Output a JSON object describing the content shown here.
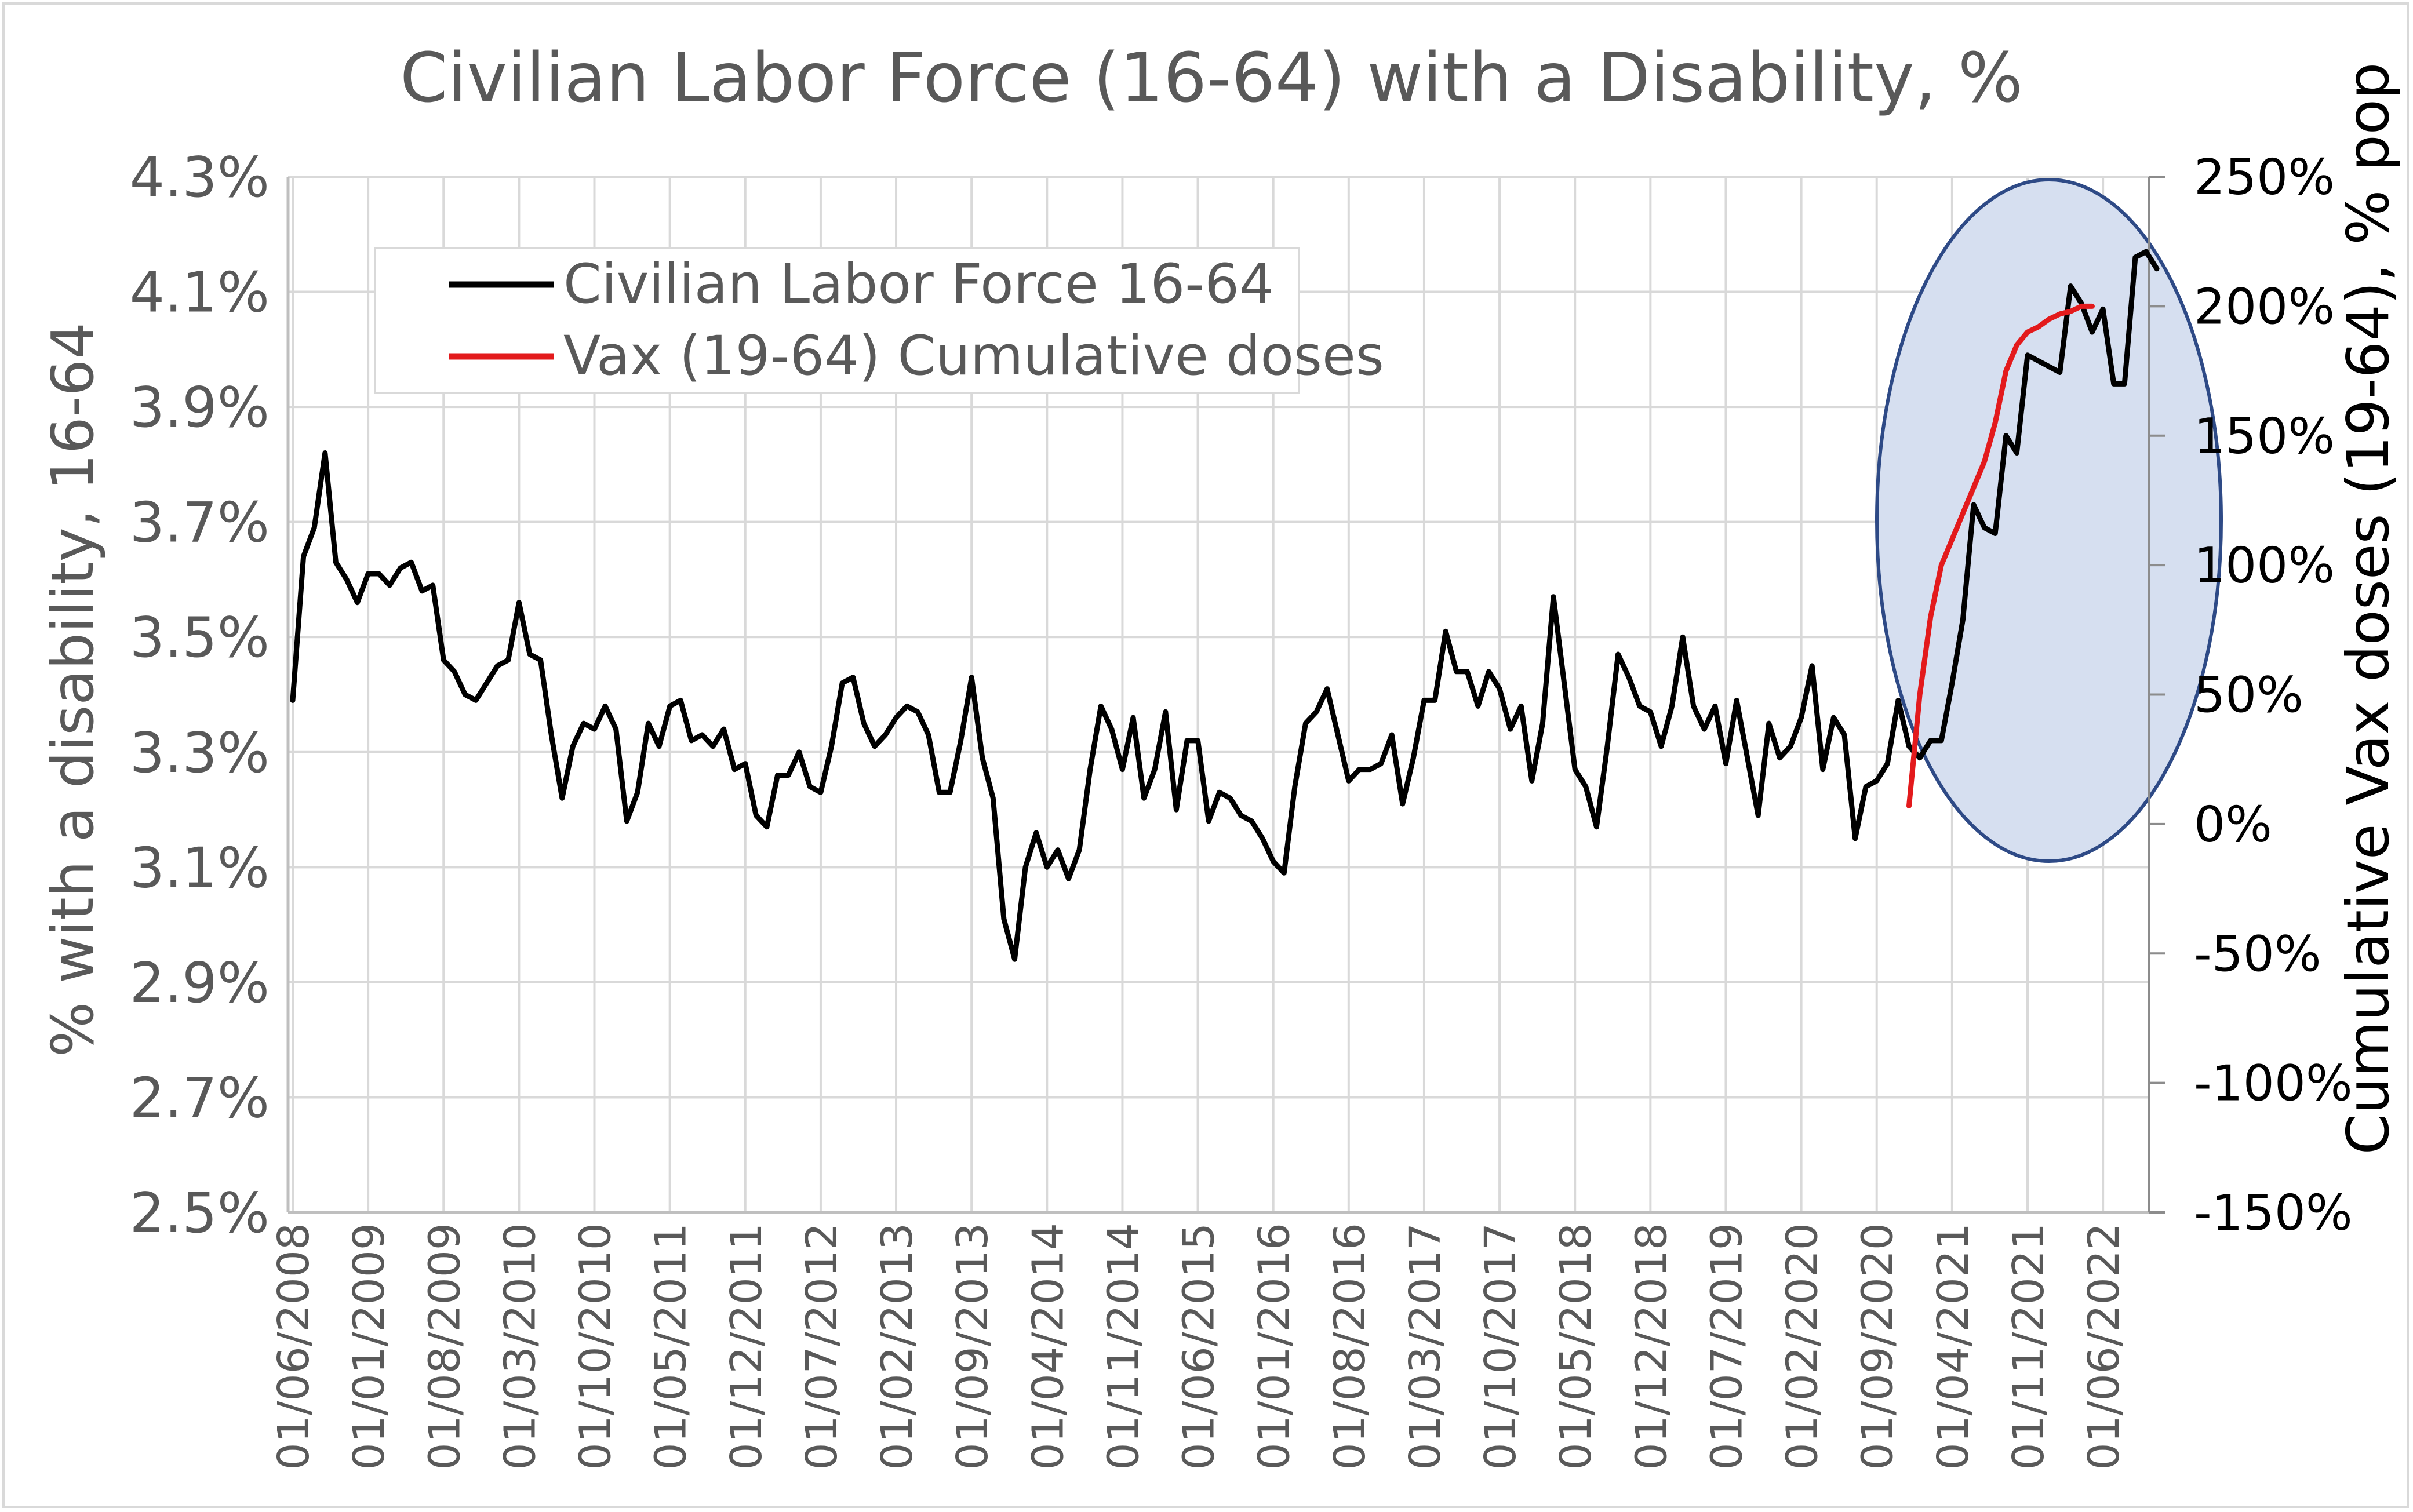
{
  "chart_data": {
    "type": "line",
    "title": "Civilian Labor Force (16-64) with a Disability, %",
    "ylabel": "% with a disability, 16-64",
    "ylabel_right": "Cumulative Vax doses (19-64), % pop",
    "ylim": [
      2.5,
      4.3
    ],
    "ylim_right": [
      -150,
      250
    ],
    "yticks": [
      "4.3%",
      "4.1%",
      "3.9%",
      "3.7%",
      "3.5%",
      "3.3%",
      "3.1%",
      "2.9%",
      "2.7%",
      "2.5%"
    ],
    "yticks_right": [
      "250%",
      "200%",
      "150%",
      "100%",
      "50%",
      "0%",
      "-50%",
      "-100%",
      "-150%"
    ],
    "xticks": [
      "01/06/2008",
      "01/01/2009",
      "01/08/2009",
      "01/03/2010",
      "01/10/2010",
      "01/05/2011",
      "01/12/2011",
      "01/07/2012",
      "01/02/2013",
      "01/09/2013",
      "01/04/2014",
      "01/11/2014",
      "01/06/2015",
      "01/01/2016",
      "01/08/2016",
      "01/03/2017",
      "01/10/2017",
      "01/05/2018",
      "01/12/2018",
      "01/07/2019",
      "01/02/2020",
      "01/09/2020",
      "01/04/2021",
      "01/11/2021",
      "01/06/2022"
    ],
    "grid": true,
    "legend_position": "top-left",
    "series": [
      {
        "name": "Civilian Labor Force 16-64",
        "color": "#000000",
        "axis": "left",
        "x_start": "2008-06",
        "x_step": "1 month",
        "values": [
          3.39,
          3.64,
          3.69,
          3.82,
          3.63,
          3.6,
          3.56,
          3.61,
          3.61,
          3.59,
          3.62,
          3.63,
          3.58,
          3.59,
          3.46,
          3.44,
          3.4,
          3.39,
          3.42,
          3.45,
          3.46,
          3.56,
          3.47,
          3.46,
          3.33,
          3.22,
          3.31,
          3.35,
          3.34,
          3.38,
          3.34,
          3.18,
          3.23,
          3.35,
          3.31,
          3.38,
          3.39,
          3.32,
          3.33,
          3.31,
          3.34,
          3.27,
          3.28,
          3.19,
          3.17,
          3.26,
          3.26,
          3.3,
          3.24,
          3.23,
          3.31,
          3.42,
          3.43,
          3.35,
          3.31,
          3.33,
          3.36,
          3.38,
          3.37,
          3.33,
          3.23,
          3.23,
          3.32,
          3.43,
          3.29,
          3.22,
          3.01,
          2.94,
          3.1,
          3.16,
          3.1,
          3.13,
          3.08,
          3.13,
          3.27,
          3.38,
          3.34,
          3.27,
          3.36,
          3.22,
          3.27,
          3.37,
          3.2,
          3.32,
          3.32,
          3.18,
          3.23,
          3.22,
          3.19,
          3.18,
          3.15,
          3.11,
          3.09,
          3.24,
          3.35,
          3.37,
          3.41,
          3.33,
          3.25,
          3.27,
          3.27,
          3.28,
          3.33,
          3.21,
          3.29,
          3.39,
          3.39,
          3.51,
          3.44,
          3.44,
          3.38,
          3.44,
          3.41,
          3.34,
          3.38,
          3.25,
          3.35,
          3.57,
          3.42,
          3.27,
          3.24,
          3.17,
          3.31,
          3.47,
          3.43,
          3.38,
          3.37,
          3.31,
          3.38,
          3.5,
          3.38,
          3.34,
          3.38,
          3.28,
          3.39,
          3.29,
          3.19,
          3.35,
          3.29,
          3.31,
          3.36,
          3.45,
          3.27,
          3.36,
          3.33,
          3.15,
          3.24,
          3.25,
          3.28,
          3.39,
          3.31,
          3.29,
          3.32,
          3.32,
          3.42,
          3.53,
          3.73,
          3.69,
          3.68,
          3.85,
          3.82,
          3.99,
          3.98,
          3.97,
          3.96,
          4.11,
          4.08,
          4.03,
          4.07,
          3.94,
          3.94,
          4.16,
          4.17,
          4.14
        ]
      },
      {
        "name": "Vax (19-64) Cumulative doses",
        "color": "#e31a1c",
        "axis": "right",
        "x_start": "2020-12",
        "x_step": "1 month",
        "values": [
          7,
          50,
          80,
          100,
          110,
          120,
          130,
          140,
          155,
          175,
          185,
          190,
          192,
          195,
          197,
          198,
          200,
          200
        ]
      }
    ],
    "annotations": [
      {
        "type": "ellipse",
        "label": "",
        "fill": "#d6dff0",
        "stroke": "#2e4a86"
      }
    ]
  }
}
